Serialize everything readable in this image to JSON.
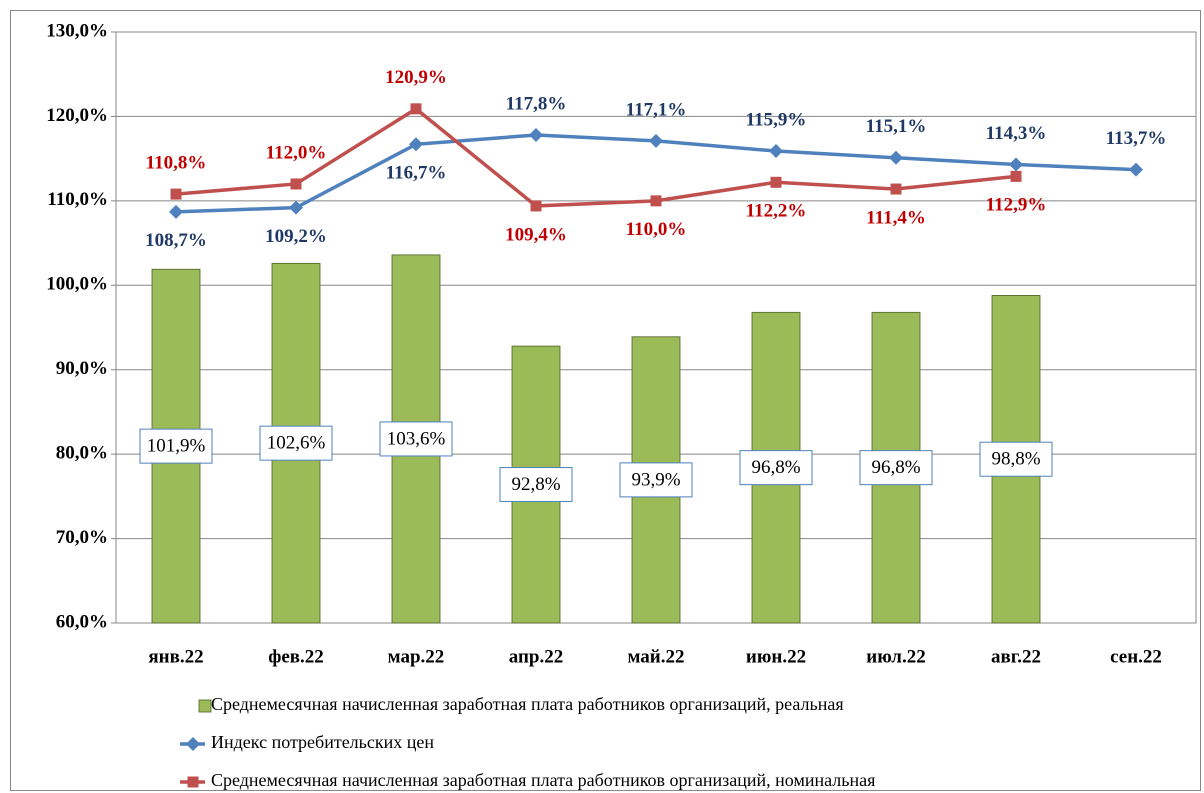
{
  "chart_data": {
    "type": "bar_line",
    "categories": [
      "янв.22",
      "фев.22",
      "мар.22",
      "апр.22",
      "май.22",
      "июн.22",
      "июл.22",
      "авг.22",
      "сен.22"
    ],
    "ylim": [
      60,
      130
    ],
    "yticks": [
      {
        "value": 60,
        "label": "60,0%"
      },
      {
        "value": 70,
        "label": "70,0%"
      },
      {
        "value": 80,
        "label": "80,0%"
      },
      {
        "value": 90,
        "label": "90,0%"
      },
      {
        "value": 100,
        "label": "100,0%"
      },
      {
        "value": 110,
        "label": "110,0%"
      },
      {
        "value": 120,
        "label": "120,0%"
      },
      {
        "value": 130,
        "label": "130,0%"
      }
    ],
    "grid": true,
    "legend": "bottom",
    "series": [
      {
        "name": "Среднемесячная начисленная заработная плата работников организаций, реальная",
        "kind": "bar",
        "color": "#9bbb59",
        "values": [
          101.9,
          102.6,
          103.6,
          92.8,
          93.9,
          96.8,
          96.8,
          98.8,
          null
        ],
        "value_labels": [
          "101,9%",
          "102,6%",
          "103,6%",
          "92,8%",
          "93,9%",
          "96,8%",
          "96,8%",
          "98,8%",
          null
        ]
      },
      {
        "name": "Индекс потребительских цен",
        "kind": "line",
        "color": "#4f81bd",
        "label_color": "#1f3864",
        "marker": "diamond",
        "values": [
          108.7,
          109.2,
          116.7,
          117.8,
          117.1,
          115.9,
          115.1,
          114.3,
          113.7
        ],
        "value_labels": [
          "108,7%",
          "109,2%",
          "116,7%",
          "117,8%",
          "117,1%",
          "115,9%",
          "115,1%",
          "114,3%",
          "113,7%"
        ]
      },
      {
        "name": "Среднемесячная начисленная заработная плата работников организаций, номинальная",
        "kind": "line",
        "color": "#c0504d",
        "label_color": "#c00000",
        "marker": "square",
        "values": [
          110.8,
          112.0,
          120.9,
          109.4,
          110.0,
          112.2,
          111.4,
          112.9,
          null
        ],
        "value_labels": [
          "110,8%",
          "112,0%",
          "120,9%",
          "109,4%",
          "110,0%",
          "112,2%",
          "111,4%",
          "112,9%",
          null
        ]
      }
    ]
  }
}
